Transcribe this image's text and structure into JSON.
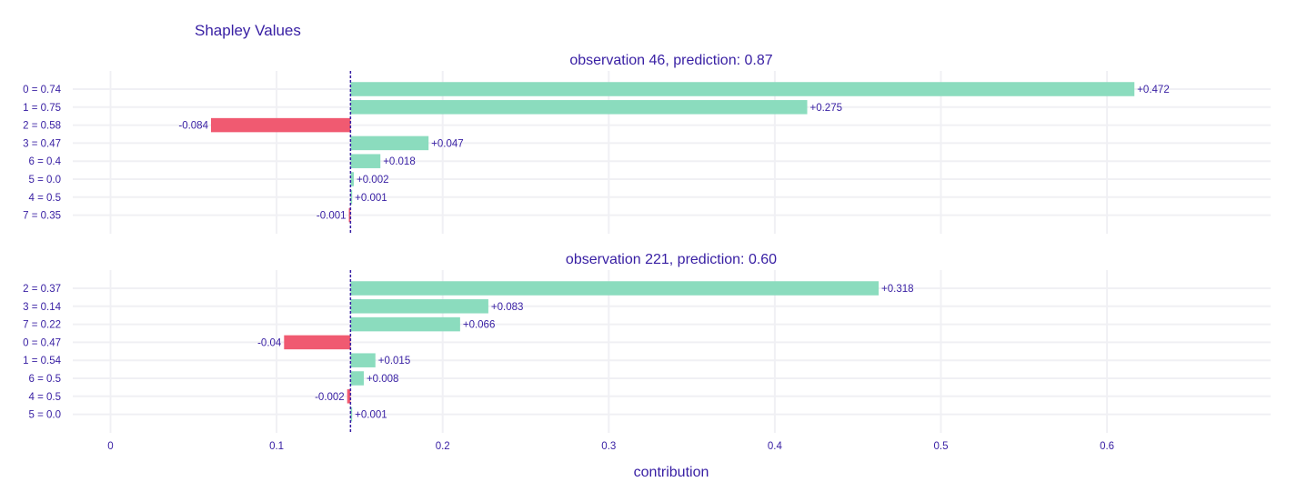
{
  "chart_data": {
    "type": "bar",
    "title": "Shapley Values",
    "xlabel": "contribution",
    "xlim": [
      -0.065,
      0.7
    ],
    "xticks": [
      0,
      0.1,
      0.2,
      0.3,
      0.4,
      0.5,
      0.6
    ],
    "xtick_labels": [
      "0",
      "0.1",
      "0.2",
      "0.3",
      "0.4",
      "0.5",
      "0.6"
    ],
    "baseline": 0.1445,
    "orientation": "horizontal",
    "grid": true,
    "colors": {
      "positive": "#8bdcbe",
      "negative": "#f05a71",
      "text": "#371ea3",
      "grid": "#f0f0f4",
      "baseline": "#371ea3"
    },
    "panels": [
      {
        "title": "observation 46, prediction: 0.87",
        "categories": [
          "0 = 0.74",
          "1 = 0.75",
          "2 = 0.58",
          "3 = 0.47",
          "6 = 0.4",
          "5 = 0.0",
          "4 = 0.5",
          "7 = 0.35"
        ],
        "values": [
          0.472,
          0.275,
          -0.084,
          0.047,
          0.018,
          0.002,
          0.001,
          -0.001
        ],
        "labels": [
          "+0.472",
          "+0.275",
          "-0.084",
          "+0.047",
          "+0.018",
          "+0.002",
          "+0.001",
          "-0.001"
        ]
      },
      {
        "title": "observation 221, prediction: 0.60",
        "categories": [
          "2 = 0.37",
          "3 = 0.14",
          "7 = 0.22",
          "0 = 0.47",
          "1 = 0.54",
          "6 = 0.5",
          "4 = 0.5",
          "5 = 0.0"
        ],
        "values": [
          0.318,
          0.083,
          0.066,
          -0.04,
          0.015,
          0.008,
          -0.002,
          0.001
        ],
        "labels": [
          "+0.318",
          "+0.083",
          "+0.066",
          "-0.04",
          "+0.015",
          "+0.008",
          "-0.002",
          "+0.001"
        ]
      }
    ]
  }
}
